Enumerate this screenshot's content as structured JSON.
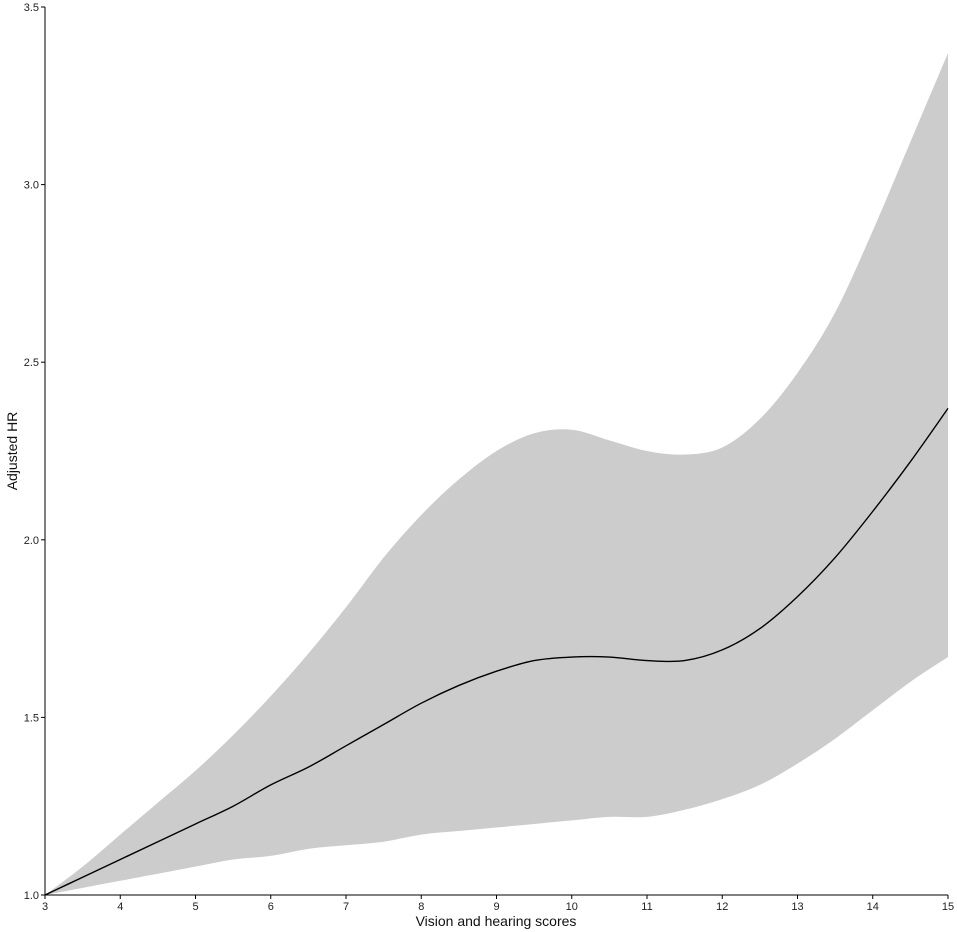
{
  "chart_data": {
    "type": "line",
    "title": "",
    "xlabel": "Vision and hearing scores",
    "ylabel": "Adjusted HR",
    "xlim": [
      3,
      15
    ],
    "ylim": [
      1.0,
      3.5
    ],
    "x_ticks": [
      "3",
      "4",
      "5",
      "6",
      "7",
      "8",
      "9",
      "10",
      "11",
      "12",
      "13",
      "14",
      "15"
    ],
    "y_ticks": [
      "1.0",
      "1.5",
      "2.0",
      "2.5",
      "3.0",
      "3.5"
    ],
    "grid": false,
    "legend": "none",
    "series": [
      {
        "kind": "line",
        "color": "#000000",
        "x": [
          3,
          3.5,
          4,
          4.5,
          5,
          5.5,
          6,
          6.5,
          7,
          7.5,
          8,
          8.5,
          9,
          9.5,
          10,
          10.5,
          11,
          11.5,
          12,
          12.5,
          13,
          13.5,
          14,
          14.5,
          15
        ],
        "y": [
          1.0,
          1.05,
          1.1,
          1.15,
          1.2,
          1.25,
          1.31,
          1.36,
          1.42,
          1.48,
          1.54,
          1.59,
          1.63,
          1.66,
          1.67,
          1.67,
          1.66,
          1.66,
          1.69,
          1.75,
          1.84,
          1.95,
          2.08,
          2.22,
          2.37
        ]
      },
      {
        "kind": "confidence-band",
        "color": "#cccccc",
        "x": [
          3,
          3.5,
          4,
          4.5,
          5,
          5.5,
          6,
          6.5,
          7,
          7.5,
          8,
          8.5,
          9,
          9.5,
          10,
          10.5,
          11,
          11.5,
          12,
          12.5,
          13,
          13.5,
          14,
          14.5,
          15
        ],
        "lower": [
          1.0,
          1.02,
          1.04,
          1.06,
          1.08,
          1.1,
          1.11,
          1.13,
          1.14,
          1.15,
          1.17,
          1.18,
          1.19,
          1.2,
          1.21,
          1.22,
          1.22,
          1.24,
          1.27,
          1.31,
          1.37,
          1.44,
          1.52,
          1.6,
          1.67
        ],
        "upper": [
          1.0,
          1.08,
          1.17,
          1.26,
          1.35,
          1.45,
          1.56,
          1.68,
          1.81,
          1.95,
          2.07,
          2.17,
          2.25,
          2.3,
          2.31,
          2.28,
          2.25,
          2.24,
          2.26,
          2.34,
          2.47,
          2.64,
          2.87,
          3.12,
          3.37
        ]
      }
    ]
  }
}
